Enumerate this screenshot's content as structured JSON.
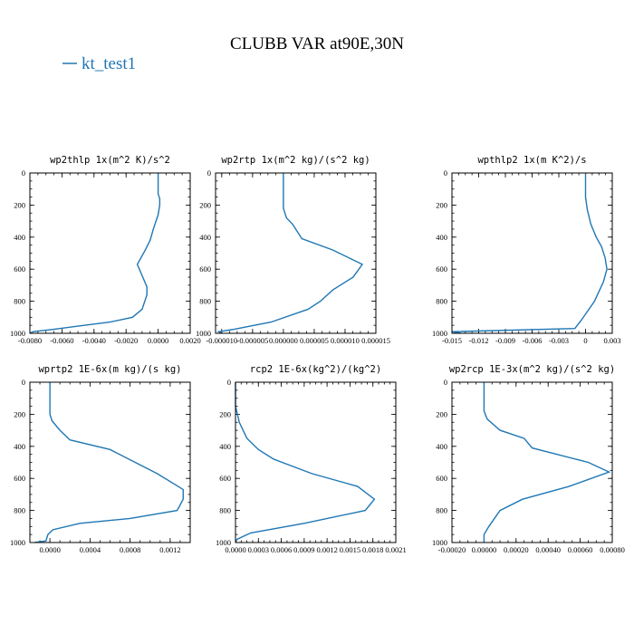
{
  "figure": {
    "title": "CLUBB VAR at90E,30N",
    "legend": [
      {
        "name": "kt_test1",
        "color": "#1f77b4"
      }
    ]
  },
  "chart_data": [
    {
      "type": "line",
      "title": "wp2thlp  1x(m^2 K)/s^2",
      "xlim": [
        -0.008,
        0.002
      ],
      "xticks": [
        -0.008,
        -0.006,
        -0.004,
        -0.002,
        0,
        0.002
      ],
      "xticklabels": [
        "-0.0080",
        "-0.0060",
        "-0.0040",
        "-0.0020",
        "0.0000",
        "0.0020"
      ],
      "ylim": [
        0,
        1000
      ],
      "yticks": [
        0,
        200,
        400,
        600,
        800,
        1000
      ],
      "yticklabels": [
        "0",
        "200",
        "400",
        "600",
        "800",
        "1000"
      ],
      "series": [
        {
          "name": "kt_test1",
          "x": [
            0,
            0,
            0.0001,
            0.0001,
            0,
            -0.0003,
            -0.0005,
            -0.0008,
            -0.0013,
            -0.001,
            -0.0007,
            -0.0007,
            -0.001,
            -0.0016,
            -0.003,
            -0.005,
            -0.0065,
            -0.0078,
            -0.008
          ],
          "y": [
            0,
            130,
            160,
            200,
            260,
            350,
            420,
            480,
            570,
            640,
            710,
            760,
            850,
            900,
            930,
            955,
            975,
            990,
            1000
          ]
        }
      ]
    },
    {
      "type": "line",
      "title": "wp2rtp  1x(m^2 kg)/(s^2 kg)",
      "xlim": [
        -1.1e-05,
        1.5e-05
      ],
      "xticks": [
        -1e-05,
        -5e-06,
        0,
        5e-06,
        1e-05,
        1.5e-05
      ],
      "xticklabels": [
        "-0.000010",
        "-0.000005",
        "0.000000",
        "0.000005",
        "0.000010",
        "0.000015"
      ],
      "ylim": [
        0,
        1000
      ],
      "yticks": [
        0,
        200,
        400,
        600,
        800,
        1000
      ],
      "yticklabels": [
        "0",
        "200",
        "400",
        "600",
        "800",
        "1000"
      ],
      "series": [
        {
          "name": "kt_test1",
          "x": [
            0,
            0,
            0,
            5e-07,
            1.5e-06,
            3e-06,
            8e-06,
            1.28e-05,
            1.13e-05,
            8e-06,
            6e-06,
            4e-06,
            -2e-06,
            -8e-06,
            -1.05e-05,
            -1e-05
          ],
          "y": [
            0,
            160,
            220,
            280,
            320,
            410,
            480,
            570,
            650,
            730,
            800,
            850,
            930,
            975,
            990,
            1000
          ]
        }
      ]
    },
    {
      "type": "line",
      "title": "wpthlp2  1x(m K^2)/s",
      "xlim": [
        -0.015,
        0.003
      ],
      "xticks": [
        -0.015,
        -0.012,
        -0.009,
        -0.006,
        -0.003,
        0,
        0.003
      ],
      "xticklabels": [
        "-0.015",
        "-0.012",
        "-0.009",
        "-0.006",
        "-0.003",
        "0",
        "0.003"
      ],
      "ylim": [
        0,
        1000
      ],
      "yticks": [
        0,
        200,
        400,
        600,
        800,
        1000
      ],
      "yticklabels": [
        "0",
        "200",
        "400",
        "600",
        "800",
        "1000"
      ],
      "series": [
        {
          "name": "kt_test1",
          "x": [
            0,
            0,
            0.0002,
            0.0006,
            0.0012,
            0.0018,
            0.0022,
            0.0024,
            0.002,
            0.001,
            -0.0005,
            -0.0012,
            -0.015,
            -0.014
          ],
          "y": [
            0,
            150,
            230,
            320,
            400,
            460,
            530,
            600,
            680,
            800,
            920,
            970,
            990,
            1000
          ]
        }
      ]
    },
    {
      "type": "line",
      "title": "wprtp2  1E-6x(m kg)/(s kg)",
      "xlim": [
        -0.0002,
        0.0014
      ],
      "xticks": [
        0,
        0.0004,
        0.0008,
        0.0012
      ],
      "xticklabels": [
        "0.0000",
        "0.0004",
        "0.0008",
        "0.0012"
      ],
      "ylim": [
        0,
        1000
      ],
      "yticks": [
        0,
        200,
        400,
        600,
        800,
        1000
      ],
      "yticklabels": [
        "0",
        "200",
        "400",
        "600",
        "800",
        "1000"
      ],
      "series": [
        {
          "name": "kt_test1",
          "x": [
            0,
            0,
            2e-05,
            0.0001,
            0.0002,
            0.0006,
            0.00107,
            0.00128,
            0.00133,
            0.00133,
            0.00127,
            0.0008,
            0.0003,
            3e-05,
            -2e-05,
            -4e-05,
            -0.00015
          ],
          "y": [
            0,
            200,
            240,
            300,
            360,
            420,
            570,
            650,
            670,
            730,
            800,
            850,
            880,
            920,
            950,
            990,
            1000
          ]
        }
      ]
    },
    {
      "type": "line",
      "title": "rcp2  1E-6x(kg^2)/(kg^2)",
      "xlim": [
        0,
        0.0021
      ],
      "xticks": [
        0,
        0.0003,
        0.0006,
        0.0009,
        0.0012,
        0.0015,
        0.0018,
        0.0021
      ],
      "xticklabels": [
        "0.0000",
        "0.0003",
        "0.0006",
        "0.0009",
        "0.0012",
        "0.0015",
        "0.0018",
        "0.0021"
      ],
      "ylim": [
        0,
        1000
      ],
      "yticks": [
        0,
        200,
        400,
        600,
        800,
        1000
      ],
      "yticklabels": [
        "0",
        "200",
        "400",
        "600",
        "800",
        "1000"
      ],
      "series": [
        {
          "name": "kt_test1",
          "x": [
            0,
            0,
            5e-05,
            0.00015,
            0.0003,
            0.0005,
            0.001,
            0.0016,
            0.00182,
            0.0017,
            0.0009,
            0.0002,
            2e-05,
            0
          ],
          "y": [
            0,
            150,
            250,
            350,
            420,
            480,
            570,
            650,
            730,
            800,
            880,
            940,
            980,
            1000
          ]
        }
      ]
    },
    {
      "type": "line",
      "title": "wp2rcp  1E-3x(m^2 kg)/(s^2 kg)",
      "xlim": [
        -0.0002,
        0.0008
      ],
      "xticks": [
        -0.0002,
        0,
        0.0002,
        0.0004,
        0.0006,
        0.0008
      ],
      "xticklabels": [
        "-0.00020",
        "0.00000",
        "0.00020",
        "0.00040",
        "0.00060",
        "0.00080"
      ],
      "ylim": [
        0,
        1000
      ],
      "yticks": [
        0,
        200,
        400,
        600,
        800,
        1000
      ],
      "yticklabels": [
        "0",
        "200",
        "400",
        "600",
        "800",
        "1000"
      ],
      "series": [
        {
          "name": "kt_test1",
          "x": [
            0,
            0,
            2e-05,
            0.0001,
            0.00025,
            0.0003,
            0.00065,
            0.00078,
            0.00053,
            0.00024,
            0.0001,
            3e-05,
            0,
            0
          ],
          "y": [
            0,
            180,
            230,
            300,
            350,
            410,
            500,
            560,
            650,
            730,
            800,
            900,
            950,
            1000
          ]
        }
      ]
    }
  ]
}
